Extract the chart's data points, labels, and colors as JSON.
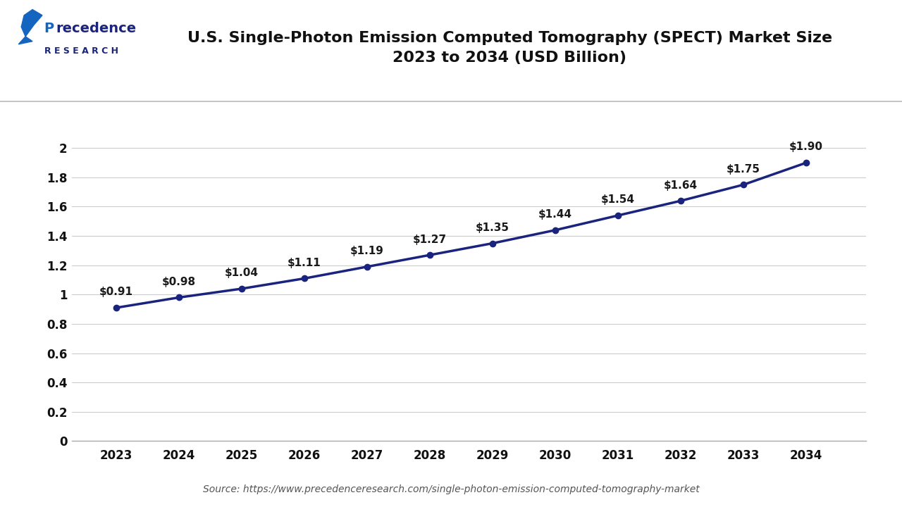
{
  "title_line1": "U.S. Single-Photon Emission Computed Tomography (SPECT) Market Size",
  "title_line2": "2023 to 2034 (USD Billion)",
  "years": [
    2023,
    2024,
    2025,
    2026,
    2027,
    2028,
    2029,
    2030,
    2031,
    2032,
    2033,
    2034
  ],
  "values": [
    0.91,
    0.98,
    1.04,
    1.11,
    1.19,
    1.27,
    1.35,
    1.44,
    1.54,
    1.64,
    1.75,
    1.9
  ],
  "labels": [
    "$0.91",
    "$0.98",
    "$1.04",
    "$1.11",
    "$1.19",
    "$1.27",
    "$1.35",
    "$1.44",
    "$1.54",
    "$1.64",
    "$1.75",
    "$1.90"
  ],
  "line_color": "#1a237e",
  "marker_color": "#1a237e",
  "background_color": "#ffffff",
  "grid_color": "#cccccc",
  "yticks": [
    0,
    0.2,
    0.4,
    0.6,
    0.8,
    1.0,
    1.2,
    1.4,
    1.6,
    1.8,
    2.0
  ],
  "ylim": [
    0,
    2.18
  ],
  "source_text": "Source: https://www.precedenceresearch.com/single-photon-emission-computed-tomography-market",
  "title_fontsize": 16,
  "label_fontsize": 11,
  "tick_fontsize": 12,
  "source_fontsize": 10,
  "logo_precedence_color": "#1a237e",
  "logo_p_color": "#1565c0",
  "logo_leaf_color": "#1565c0",
  "separator_line_color": "#bbbbbb",
  "header_line_color": "#1a237e"
}
